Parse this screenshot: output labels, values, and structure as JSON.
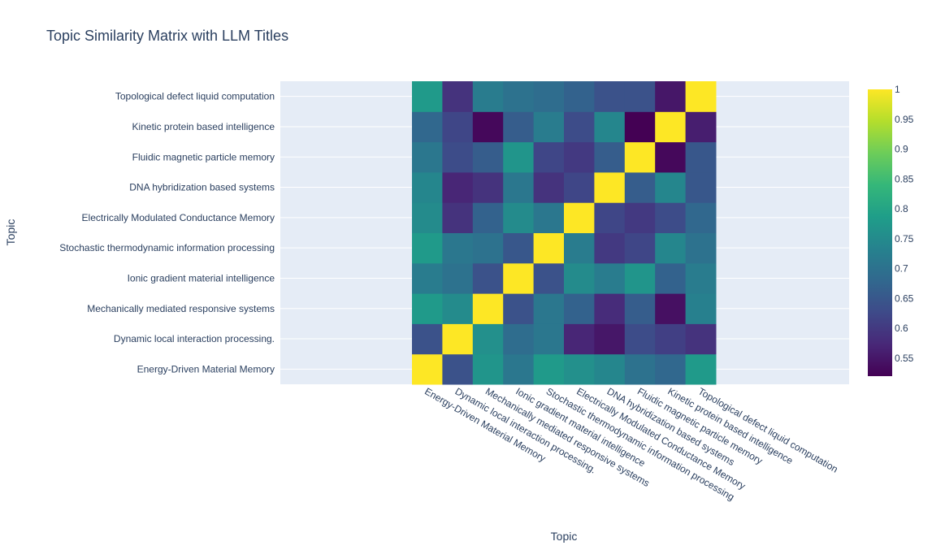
{
  "chart_data": {
    "type": "heatmap",
    "title": "Topic Similarity Matrix with LLM Titles",
    "xlabel": "Topic",
    "ylabel": "Topic",
    "categories": [
      "Energy-Driven Material Memory",
      "Dynamic local interaction processing.",
      "Mechanically mediated responsive systems",
      "Ionic gradient material intelligence",
      "Stochastic thermodynamic information processing",
      "Electrically Modulated Conductance Memory",
      "DNA hybridization based systems",
      "Fluidic magnetic particle memory",
      "Kinetic protein based intelligence",
      "Topological defect liquid computation"
    ],
    "z": [
      [
        1.0,
        0.64,
        0.77,
        0.71,
        0.78,
        0.76,
        0.74,
        0.7,
        0.68,
        0.78
      ],
      [
        0.64,
        1.0,
        0.76,
        0.69,
        0.71,
        0.57,
        0.55,
        0.63,
        0.61,
        0.59
      ],
      [
        0.78,
        0.75,
        1.0,
        0.64,
        0.71,
        0.67,
        0.58,
        0.66,
        0.54,
        0.73
      ],
      [
        0.72,
        0.7,
        0.64,
        1.0,
        0.64,
        0.75,
        0.72,
        0.77,
        0.67,
        0.72
      ],
      [
        0.78,
        0.71,
        0.7,
        0.65,
        1.0,
        0.72,
        0.6,
        0.62,
        0.74,
        0.7
      ],
      [
        0.75,
        0.59,
        0.67,
        0.75,
        0.71,
        1.0,
        0.62,
        0.6,
        0.63,
        0.68
      ],
      [
        0.74,
        0.57,
        0.59,
        0.71,
        0.59,
        0.62,
        1.0,
        0.66,
        0.74,
        0.65
      ],
      [
        0.71,
        0.63,
        0.66,
        0.77,
        0.62,
        0.6,
        0.66,
        1.0,
        0.53,
        0.65
      ],
      [
        0.68,
        0.62,
        0.53,
        0.66,
        0.72,
        0.63,
        0.74,
        0.52,
        1.0,
        0.56
      ],
      [
        0.78,
        0.59,
        0.72,
        0.7,
        0.69,
        0.67,
        0.64,
        0.64,
        0.55,
        1.0
      ]
    ],
    "zlim": [
      0.52,
      1.0
    ],
    "colorscale": "Viridis",
    "colorbar_ticks": [
      "0.55",
      "0.6",
      "0.65",
      "0.7",
      "0.75",
      "0.8",
      "0.85",
      "0.9",
      "0.95",
      "1"
    ],
    "colorbar_tick_values": [
      0.55,
      0.6,
      0.65,
      0.7,
      0.75,
      0.8,
      0.85,
      0.9,
      0.95,
      1.0
    ],
    "grid": true,
    "plot_bgcolor": "#e5ecf6"
  }
}
